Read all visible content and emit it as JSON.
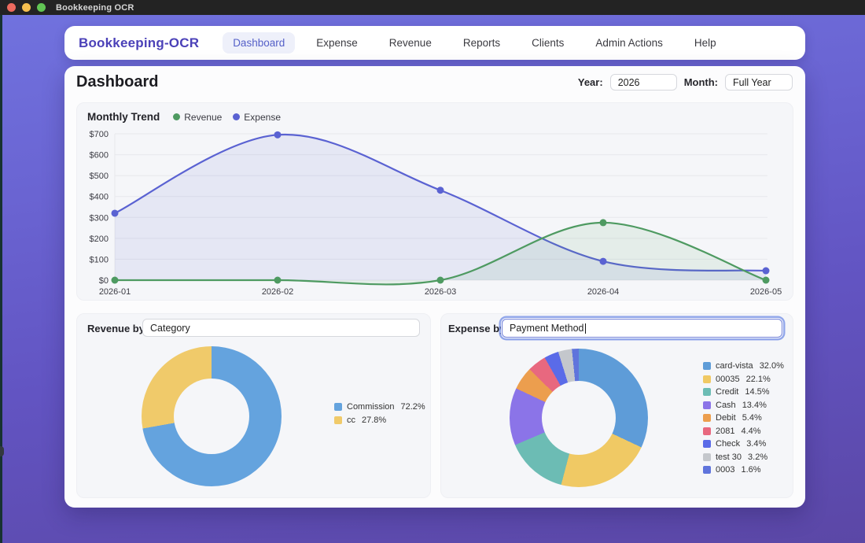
{
  "titlebar": {
    "title": "Bookkeeping OCR",
    "traffic_lights": [
      "#ec6a5e",
      "#f5bf4f",
      "#61c554"
    ]
  },
  "nav": {
    "brand": "Bookkeeping-OCR",
    "items": [
      {
        "label": "Dashboard",
        "active": true
      },
      {
        "label": "Expense",
        "active": false
      },
      {
        "label": "Revenue",
        "active": false
      },
      {
        "label": "Reports",
        "active": false
      },
      {
        "label": "Clients",
        "active": false
      },
      {
        "label": "Admin Actions",
        "active": false
      },
      {
        "label": "Help",
        "active": false
      }
    ]
  },
  "header": {
    "title": "Dashboard",
    "year_label": "Year:",
    "year_value": "2026",
    "month_label": "Month:",
    "month_value": "Full Year"
  },
  "revenue_by": {
    "label": "Revenue by:",
    "value": "Category"
  },
  "expense_by": {
    "label": "Expense by:",
    "value": "Payment Method",
    "focused": true
  },
  "chart_data": [
    {
      "type": "line",
      "title": "Monthly Trend",
      "x": [
        "2026-01",
        "2026-02",
        "2026-03",
        "2026-04",
        "2026-05"
      ],
      "series": [
        {
          "name": "Expense",
          "color": "#5a62d2",
          "fill": "rgba(90,98,210,0.10)",
          "values": [
            320,
            695,
            430,
            90,
            45
          ]
        },
        {
          "name": "Revenue",
          "color": "#4e9a61",
          "fill": "rgba(78,154,97,0.10)",
          "values": [
            0,
            0,
            0,
            275,
            0
          ]
        }
      ],
      "legend_order": [
        "Revenue",
        "Expense"
      ],
      "ylim": [
        0,
        700
      ],
      "ytick": 100,
      "yprefix": "$",
      "grid": true,
      "legend_position": "top"
    },
    {
      "type": "pie",
      "title": "Revenue by Category",
      "slices": [
        {
          "label": "Commission",
          "pct": 72.2,
          "color": "#64a3de"
        },
        {
          "label": "cc",
          "pct": 27.8,
          "color": "#f0ca6a"
        }
      ]
    },
    {
      "type": "pie",
      "title": "Expense by Payment Method",
      "slices": [
        {
          "label": "card-vista",
          "pct": 32.0,
          "color": "#5e9cd8"
        },
        {
          "label": "00035",
          "pct": 22.1,
          "color": "#f0c964"
        },
        {
          "label": "Credit",
          "pct": 14.5,
          "color": "#6cbcb4"
        },
        {
          "label": "Cash",
          "pct": 13.4,
          "color": "#8b74e8"
        },
        {
          "label": "Debit",
          "pct": 5.4,
          "color": "#ec9e4e"
        },
        {
          "label": "2081",
          "pct": 4.4,
          "color": "#e8687f"
        },
        {
          "label": "Check",
          "pct": 3.4,
          "color": "#5a6be8"
        },
        {
          "label": "test 30",
          "pct": 3.2,
          "color": "#c4c7cc"
        },
        {
          "label": "0003",
          "pct": 1.6,
          "color": "#5f74dc"
        }
      ]
    }
  ],
  "colors": {
    "brand": "#4b41b8",
    "nav_active_bg": "#eef0fa",
    "nav_active_text": "#5560c8",
    "focus_ring": "#6f7fd8",
    "panel_bg": "#f5f6f9"
  }
}
